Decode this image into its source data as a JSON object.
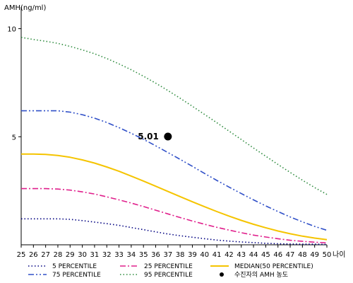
{
  "chart_data": {
    "type": "line",
    "ylabel": "AMH(ng/ml)",
    "xlabel": "나이",
    "xlim": [
      25,
      50
    ],
    "ylim": [
      0,
      11
    ],
    "yticks": [
      5,
      10
    ],
    "x": [
      25,
      26,
      27,
      28,
      29,
      30,
      31,
      32,
      33,
      34,
      35,
      36,
      37,
      38,
      39,
      40,
      41,
      42,
      43,
      44,
      45,
      46,
      47,
      48,
      49,
      50
    ],
    "series": [
      {
        "name": "5 PERCENTILE",
        "color": "#000080",
        "dash": "dot",
        "values": [
          1.2,
          1.2,
          1.2,
          1.2,
          1.18,
          1.12,
          1.05,
          0.98,
          0.9,
          0.8,
          0.7,
          0.6,
          0.5,
          0.42,
          0.35,
          0.28,
          0.22,
          0.17,
          0.13,
          0.1,
          0.07,
          0.05,
          0.04,
          0.03,
          0.03,
          0.02
        ]
      },
      {
        "name": "25 PERCENTILE",
        "color": "#e0208c",
        "dash": "dashdot",
        "values": [
          2.6,
          2.6,
          2.6,
          2.58,
          2.53,
          2.45,
          2.35,
          2.22,
          2.08,
          1.93,
          1.77,
          1.6,
          1.43,
          1.26,
          1.1,
          0.95,
          0.81,
          0.68,
          0.56,
          0.45,
          0.36,
          0.28,
          0.21,
          0.16,
          0.12,
          0.09
        ]
      },
      {
        "name": "MEDIAN(50 PERCENTILE)",
        "color": "#f5c400",
        "dash": "solid",
        "values": [
          4.2,
          4.2,
          4.18,
          4.13,
          4.05,
          3.93,
          3.78,
          3.6,
          3.4,
          3.18,
          2.95,
          2.71,
          2.47,
          2.23,
          1.99,
          1.76,
          1.54,
          1.33,
          1.13,
          0.95,
          0.79,
          0.64,
          0.51,
          0.4,
          0.31,
          0.24
        ]
      },
      {
        "name": "75 PERCENTILE",
        "color": "#3050c8",
        "dash": "dashdotdot",
        "values": [
          6.2,
          6.2,
          6.2,
          6.2,
          6.14,
          6.02,
          5.86,
          5.66,
          5.42,
          5.16,
          4.88,
          4.58,
          4.27,
          3.95,
          3.63,
          3.3,
          2.98,
          2.67,
          2.37,
          2.08,
          1.8,
          1.54,
          1.29,
          1.06,
          0.85,
          0.67
        ]
      },
      {
        "name": "95 PERCENTILE",
        "color": "#2e8b3e",
        "dash": "dot",
        "values": [
          9.6,
          9.5,
          9.42,
          9.32,
          9.18,
          9.02,
          8.84,
          8.62,
          8.37,
          8.1,
          7.8,
          7.48,
          7.14,
          6.78,
          6.41,
          6.03,
          5.65,
          5.26,
          4.87,
          4.48,
          4.1,
          3.72,
          3.35,
          2.99,
          2.65,
          2.33
        ]
      }
    ],
    "marker": {
      "name": "수진자의 AMH 농도",
      "x": 37,
      "y": 5.01,
      "label": "5.01",
      "color": "#000000"
    },
    "legend": {
      "placement": "bottom",
      "items": [
        {
          "label": "5 PERCENTILE",
          "series": 0
        },
        {
          "label": "25 PERCENTILE",
          "series": 1
        },
        {
          "label": "MEDIAN(50 PERCENTILE)",
          "series": 2
        },
        {
          "label": "75 PERCENTILE",
          "series": 3
        },
        {
          "label": "95 PERCENTILE",
          "series": 4
        },
        {
          "label": "수진자의 AMH 농도",
          "marker": true
        }
      ]
    },
    "grid": false
  }
}
